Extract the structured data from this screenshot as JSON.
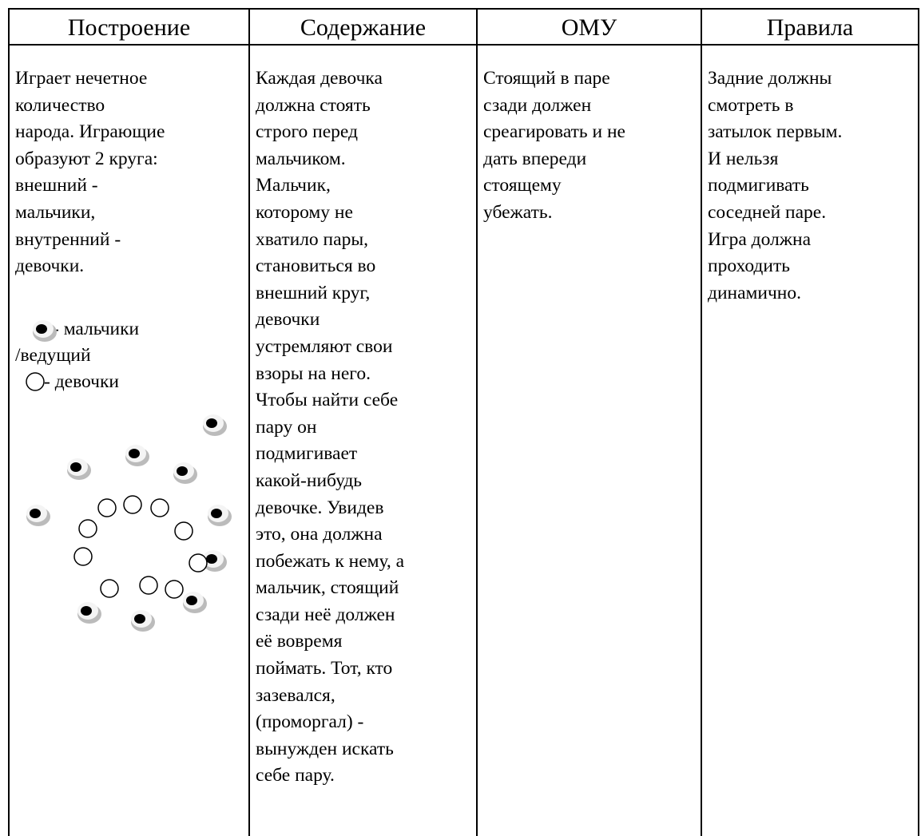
{
  "table": {
    "header": [
      "Построение",
      "Содержание",
      "ОМУ",
      "Правила"
    ],
    "rows": [
      {
        "cells": [
          {
            "lines": [
              "Играет нечетное",
              "количество",
              "народа. Играющие",
              "образуют 2 круга:",
              "внешний -",
              "мальчики,",
              "внутренний -",
              "девочки."
            ],
            "legend": [
              "- мальчики",
              "/ведущий",
              "- девочки"
            ]
          },
          {
            "lines": [
              "Каждая девочка",
              "должна стоять",
              "строго перед",
              "мальчиком.",
              "Мальчик,",
              "которому не",
              "хватило пары,",
              "становиться во",
              "внешний круг,",
              "девочки",
              "устремляют свои",
              "взоры на него.",
              "Чтобы найти себе",
              "пару он",
              "подмигивает",
              "какой-нибудь",
              "девочке. Увидев",
              "это, она должна",
              "побежать к нему, а",
              "мальчик, стоящий",
              "сзади неё должен",
              "её вовремя",
              "поймать. Тот, кто",
              "зазевался,",
              "(проморгал) -",
              "вынужден искать",
              "себе пару."
            ]
          },
          {
            "lines": [
              "Стоящий в паре",
              "сзади должен",
              "среагировать и не",
              "дать впереди",
              "стоящему",
              "убежать."
            ]
          },
          {
            "lines": [
              "Задние должны",
              "смотреть в",
              "затылок первым.",
              "И нельзя",
              "подмигивать",
              "соседней паре.",
              "Игра должна",
              "проходить",
              "динамично."
            ]
          }
        ]
      }
    ]
  }
}
